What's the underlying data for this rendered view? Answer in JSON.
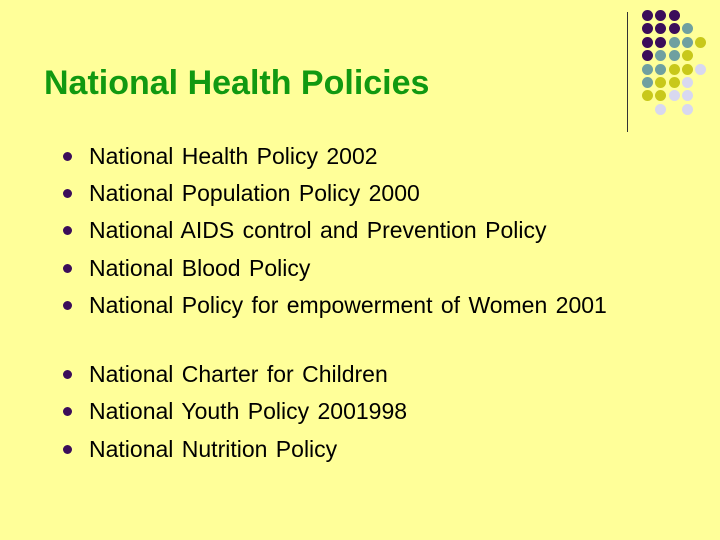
{
  "title": "National Health Policies",
  "colors": {
    "background": "#ffff99",
    "title": "#119911",
    "bullet": "#3b0d5a",
    "purple": "#3b0d5a",
    "teal": "#6fa0a0",
    "olive": "#c8c81a",
    "lavender": "#d8d8f0"
  },
  "bullets": [
    "National Health Policy 2002",
    "National Population Policy 2000",
    "National AIDS control and Prevention Policy",
    "National Blood Policy",
    "National Policy for empowerment of Women 2001",
    "National Charter for Children",
    "National Youth Policy 2001998",
    "National Nutrition Policy"
  ],
  "decoration_grid": [
    "PPP..",
    "PPPT.",
    "PPTTY",
    "PTTY.",
    "TTYYL",
    "TYYL.",
    "YYLL.",
    ".L.L."
  ]
}
